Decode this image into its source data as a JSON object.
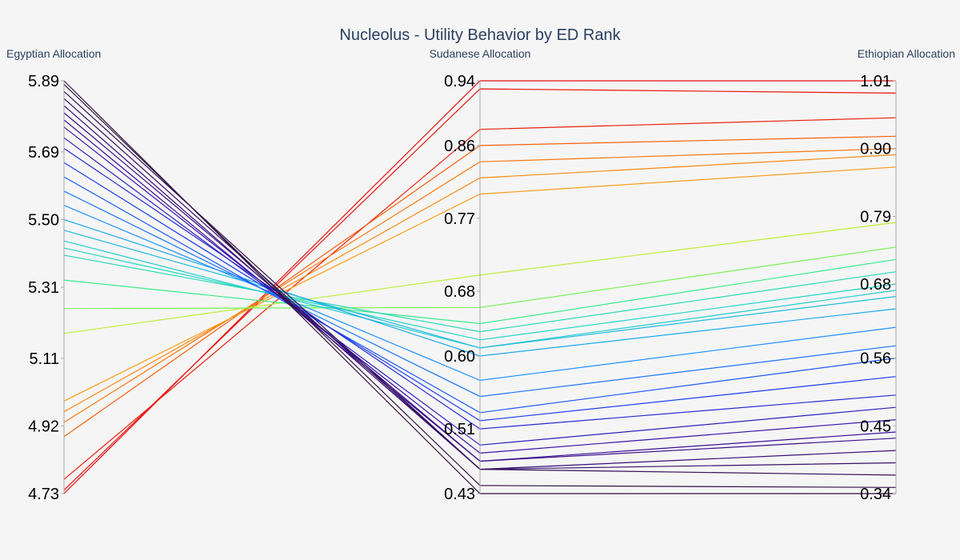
{
  "chart_data": {
    "type": "parallel_coordinates",
    "title": "Nucleolus - Utility Behavior by ED Rank",
    "dimensions": [
      {
        "label": "Egyptian Allocation",
        "range": [
          4.73,
          5.89
        ],
        "ticks": [
          "4.73",
          "4.92",
          "5.11",
          "5.31",
          "5.50",
          "5.69",
          "5.89"
        ]
      },
      {
        "label": "Sudanese Allocation",
        "range": [
          0.43,
          0.94
        ],
        "ticks": [
          "0.43",
          "0.51",
          "0.60",
          "0.68",
          "0.77",
          "0.86",
          "0.94"
        ]
      },
      {
        "label": "Ethiopian Allocation",
        "range": [
          0.34,
          1.01
        ],
        "ticks": [
          "0.34",
          "0.45",
          "0.56",
          "0.68",
          "0.79",
          "0.90",
          "1.01"
        ]
      }
    ],
    "colorscale": [
      "#30123b",
      "#3b0f9e",
      "#1a3ef0",
      "#1e90ff",
      "#21d4c9",
      "#3df07a",
      "#b5f23a",
      "#f5c91b",
      "#fb8a12",
      "#f4460c",
      "#e80e0e"
    ],
    "lines": [
      [
        4.73,
        0.94,
        1.01
      ],
      [
        4.74,
        0.93,
        0.99
      ],
      [
        4.77,
        0.88,
        0.95
      ],
      [
        4.89,
        0.86,
        0.92
      ],
      [
        4.93,
        0.84,
        0.9
      ],
      [
        4.96,
        0.82,
        0.89
      ],
      [
        4.99,
        0.8,
        0.87
      ],
      [
        5.18,
        0.7,
        0.78
      ],
      [
        5.25,
        0.66,
        0.74
      ],
      [
        5.33,
        0.64,
        0.72
      ],
      [
        5.4,
        0.63,
        0.7
      ],
      [
        5.42,
        0.62,
        0.68
      ],
      [
        5.44,
        0.61,
        0.67
      ],
      [
        5.47,
        0.61,
        0.66
      ],
      [
        5.5,
        0.6,
        0.64
      ],
      [
        5.54,
        0.57,
        0.61
      ],
      [
        5.58,
        0.55,
        0.58
      ],
      [
        5.62,
        0.53,
        0.56
      ],
      [
        5.66,
        0.52,
        0.53
      ],
      [
        5.7,
        0.51,
        0.5
      ],
      [
        5.73,
        0.49,
        0.48
      ],
      [
        5.76,
        0.48,
        0.46
      ],
      [
        5.78,
        0.47,
        0.44
      ],
      [
        5.8,
        0.47,
        0.43
      ],
      [
        5.82,
        0.46,
        0.41
      ],
      [
        5.84,
        0.46,
        0.39
      ],
      [
        5.86,
        0.46,
        0.37
      ],
      [
        5.88,
        0.44,
        0.35
      ],
      [
        5.89,
        0.43,
        0.34
      ]
    ]
  }
}
